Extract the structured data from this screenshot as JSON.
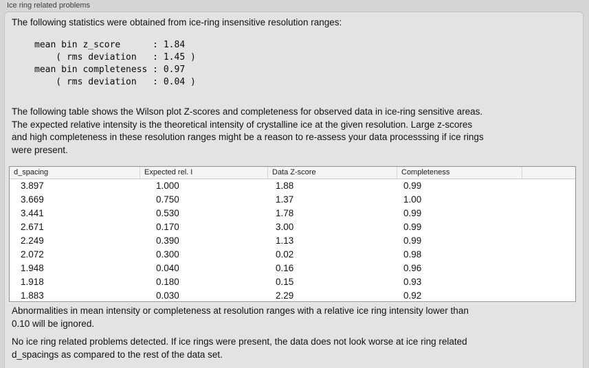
{
  "panel": {
    "title": "Ice ring related problems",
    "intro": "The following statistics were obtained from ice-ring insensitive resolution ranges:",
    "stats_block": "mean bin z_score      : 1.84\n    ( rms deviation   : 1.45 )\nmean bin completeness : 0.97\n    ( rms deviation   : 0.04 )",
    "table_description": "The following table shows the Wilson plot Z-scores and completeness for observed data in ice-ring sensitive areas.\nThe expected relative intensity is the theoretical intensity of crystalline ice at the given resolution. Large z-scores\nand high completeness in these resolution ranges might be a reason to re-assess your data processsing if ice rings\nwere present.",
    "note_ignore": "Abnormalities in mean intensity or completeness at resolution ranges with a relative ice ring intensity lower than\n0.10 will be ignored.",
    "conclusion": "No ice ring related problems detected. If ice rings were present, the data does not look worse at ice ring related\nd_spacings as compared to the rest of the data set."
  },
  "table": {
    "columns": [
      "d_spacing",
      "Expected rel. I",
      "Data Z-score",
      "Completeness"
    ],
    "rows": [
      [
        "3.897",
        "1.000",
        "1.88",
        "0.99"
      ],
      [
        "3.669",
        "0.750",
        "1.37",
        "1.00"
      ],
      [
        "3.441",
        "0.530",
        "1.78",
        "0.99"
      ],
      [
        "2.671",
        "0.170",
        "3.00",
        "0.99"
      ],
      [
        "2.249",
        "0.390",
        "1.13",
        "0.99"
      ],
      [
        "2.072",
        "0.300",
        "0.02",
        "0.98"
      ],
      [
        "1.948",
        "0.040",
        "0.16",
        "0.96"
      ],
      [
        "1.918",
        "0.180",
        "0.15",
        "0.93"
      ],
      [
        "1.883",
        "0.030",
        "2.29",
        "0.92"
      ]
    ]
  },
  "colors": {
    "window_background": "#d6d6d6",
    "groupbox_background": "#e3e3e3",
    "table_background": "#ffffff",
    "table_header_background": "#f5f5f5",
    "text": "#121212"
  }
}
